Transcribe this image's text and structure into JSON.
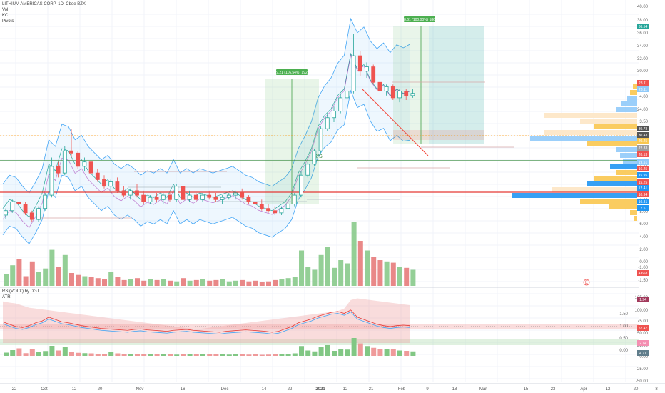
{
  "legend": {
    "title": "LITHIUM AMERICAS CORP, 1D, Cboe BZX",
    "indicators": [
      "Vol",
      "KC",
      "Pivots"
    ]
  },
  "sub_legend": {
    "line1": "RSI(VOLX) by DGT",
    "line2": "ATR"
  },
  "annotations": {
    "measure1": "19.21 (116.54%) 1921",
    "measure2": "18.61 (100.00%) 1861",
    "rs_label": "R/S",
    "circle_marker": "E"
  },
  "price_scale": [
    "40.00",
    "38.00",
    "36.00",
    "34.00",
    "32.00",
    "30.00",
    "4.50",
    "4.00",
    "24.00",
    "3.50",
    "3.00",
    "2.50",
    "2.00",
    "1.50",
    "1.00",
    "8.00",
    "6.00",
    "4.00",
    "2.00",
    "0.00",
    "-1.00",
    "-1.50"
  ],
  "osc_scale": [
    "125.00",
    "100.00",
    "75.00",
    "50.00",
    "25.00",
    "0.00",
    "-25.00",
    "-50.00"
  ],
  "osc_scale_small": [
    "1.50",
    "1.00",
    "0.50",
    "0.00"
  ],
  "price_tags": [
    {
      "label": "36.54",
      "color": "#26a69a"
    },
    {
      "label": "28.11",
      "color": "#ef5350"
    },
    {
      "label": "28.11",
      "color": "#90caf9"
    },
    {
      "label": "30.78",
      "color": "#555555"
    },
    {
      "label": "30.43",
      "color": "#555555"
    },
    {
      "label": "20.25",
      "color": "#f9c74f"
    },
    {
      "label": "22.33",
      "color": "#9e9e9e"
    },
    {
      "label": "20.13",
      "color": "#ef5350"
    },
    {
      "label": "19.51",
      "color": "#90caf9"
    },
    {
      "label": "16.25",
      "color": "#ef5350"
    },
    {
      "label": "15.95",
      "color": "#2196f3"
    },
    {
      "label": "15.25",
      "color": "#ef5350"
    },
    {
      "label": "12.41",
      "color": "#2196f3"
    },
    {
      "label": "10.94",
      "color": "#ef5350"
    },
    {
      "label": "10.81",
      "color": "#2196f3"
    },
    {
      "label": "2.5",
      "color": "#2196f3"
    },
    {
      "label": "4.668",
      "color": "#ef5350"
    },
    {
      "label": "1.94",
      "color": "#a23a5c"
    },
    {
      "label": "52.47",
      "color": "#ef5350"
    },
    {
      "label": "2.14",
      "color": "#f48fb1"
    },
    {
      "label": "4.71",
      "color": "#607d8b"
    }
  ],
  "x_axis": [
    "22",
    "Oct",
    "12",
    "20",
    "Nov",
    "16",
    "Dec",
    "14",
    "22",
    "2021",
    "12",
    "21",
    "Feb",
    "9",
    "18",
    "Mar",
    "15",
    "23",
    "Apr",
    "12",
    "20",
    "8"
  ],
  "chart_data": {
    "type": "candlestick",
    "title": "LITHIUM AMERICAS CORP, 1D, Cboe BZX",
    "price_range": [
      -1.5,
      4.8
    ],
    "candles": [
      [
        0.1,
        0.25,
        0.02,
        0.2
      ],
      [
        0.2,
        0.45,
        0.15,
        0.4
      ],
      [
        0.4,
        0.5,
        0.3,
        0.35
      ],
      [
        0.35,
        0.4,
        0.1,
        0.15
      ],
      [
        0.15,
        0.2,
        -0.05,
        0.0
      ],
      [
        0.0,
        0.3,
        -0.05,
        0.25
      ],
      [
        0.25,
        0.6,
        0.2,
        0.55
      ],
      [
        0.55,
        1.4,
        0.5,
        1.2
      ],
      [
        1.2,
        1.3,
        0.95,
        1.05
      ],
      [
        1.05,
        1.65,
        1.0,
        1.55
      ],
      [
        1.55,
        2.05,
        1.4,
        1.5
      ],
      [
        1.5,
        1.55,
        1.15,
        1.2
      ],
      [
        1.2,
        1.4,
        1.1,
        1.3
      ],
      [
        1.3,
        1.35,
        1.0,
        1.05
      ],
      [
        1.05,
        1.15,
        0.85,
        0.9
      ],
      [
        0.9,
        1.0,
        0.7,
        0.75
      ],
      [
        0.75,
        0.9,
        0.6,
        0.85
      ],
      [
        0.85,
        0.95,
        0.6,
        0.65
      ],
      [
        0.65,
        0.75,
        0.5,
        0.55
      ],
      [
        0.55,
        0.7,
        0.45,
        0.65
      ],
      [
        0.65,
        0.8,
        0.5,
        0.55
      ],
      [
        0.55,
        0.65,
        0.35,
        0.4
      ],
      [
        0.4,
        0.55,
        0.35,
        0.5
      ],
      [
        0.5,
        0.6,
        0.4,
        0.45
      ],
      [
        0.45,
        0.6,
        0.35,
        0.55
      ],
      [
        0.55,
        0.6,
        0.4,
        0.45
      ],
      [
        0.45,
        0.8,
        0.4,
        0.75
      ],
      [
        0.75,
        0.8,
        0.4,
        0.45
      ],
      [
        0.45,
        0.65,
        0.4,
        0.55
      ],
      [
        0.55,
        0.6,
        0.4,
        0.45
      ],
      [
        0.45,
        0.6,
        0.4,
        0.55
      ],
      [
        0.55,
        0.65,
        0.45,
        0.5
      ],
      [
        0.5,
        0.6,
        0.4,
        0.45
      ],
      [
        0.45,
        0.55,
        0.35,
        0.5
      ],
      [
        0.5,
        0.6,
        0.45,
        0.55
      ],
      [
        0.55,
        0.65,
        0.45,
        0.6
      ],
      [
        0.6,
        0.7,
        0.45,
        0.5
      ],
      [
        0.5,
        0.55,
        0.35,
        0.4
      ],
      [
        0.4,
        0.5,
        0.3,
        0.35
      ],
      [
        0.35,
        0.45,
        0.2,
        0.25
      ],
      [
        0.25,
        0.35,
        0.15,
        0.2
      ],
      [
        0.2,
        0.3,
        0.1,
        0.15
      ],
      [
        0.15,
        0.3,
        0.1,
        0.25
      ],
      [
        0.25,
        0.4,
        0.2,
        0.35
      ],
      [
        0.35,
        0.6,
        0.3,
        0.55
      ],
      [
        0.55,
        1.1,
        0.5,
        1.0
      ],
      [
        1.0,
        1.3,
        0.95,
        1.25
      ],
      [
        1.25,
        1.6,
        1.2,
        1.55
      ],
      [
        1.55,
        2.1,
        1.5,
        2.05
      ],
      [
        2.05,
        2.4,
        2.0,
        2.3
      ],
      [
        2.3,
        2.55,
        2.2,
        2.45
      ],
      [
        2.45,
        2.85,
        2.4,
        2.75
      ],
      [
        2.75,
        3.0,
        2.6,
        2.9
      ],
      [
        2.9,
        4.2,
        2.85,
        3.7
      ],
      [
        3.7,
        3.8,
        3.25,
        3.35
      ],
      [
        3.35,
        3.55,
        3.2,
        3.45
      ],
      [
        3.45,
        3.5,
        3.05,
        3.1
      ],
      [
        3.1,
        3.2,
        2.85,
        2.9
      ],
      [
        2.9,
        3.05,
        2.8,
        3.0
      ],
      [
        3.0,
        3.05,
        2.7,
        2.75
      ],
      [
        2.75,
        2.95,
        2.65,
        2.9
      ],
      [
        2.9,
        2.95,
        2.7,
        2.8
      ],
      [
        2.8,
        2.95,
        2.75,
        2.85
      ]
    ],
    "volume": [
      18,
      32,
      42,
      15,
      38,
      22,
      27,
      56,
      30,
      48,
      20,
      17,
      15,
      14,
      12,
      10,
      22,
      14,
      9,
      10,
      12,
      8,
      10,
      9,
      11,
      8,
      7,
      12,
      8,
      9,
      10,
      8,
      9,
      10,
      7,
      8,
      9,
      7,
      8,
      6,
      7,
      9,
      10,
      12,
      14,
      55,
      30,
      25,
      48,
      60,
      28,
      40,
      35,
      100,
      70,
      55,
      45,
      40,
      38,
      36,
      30,
      28,
      25
    ],
    "rsi": [
      60,
      55,
      50,
      48,
      52,
      58,
      62,
      70,
      65,
      60,
      58,
      55,
      52,
      50,
      48,
      46,
      45,
      44,
      43,
      42,
      44,
      45,
      43,
      42,
      41,
      40,
      42,
      43,
      44,
      42,
      41,
      40,
      39,
      38,
      40,
      41,
      42,
      43,
      42,
      41,
      40,
      38,
      40,
      45,
      50,
      58,
      62,
      66,
      72,
      76,
      80,
      82,
      78,
      85,
      70,
      65,
      60,
      55,
      52,
      50,
      52,
      53,
      52
    ],
    "vol_band": [
      115,
      112,
      110,
      105,
      100,
      98,
      96,
      94,
      92,
      90,
      88,
      86,
      84,
      82,
      80,
      78,
      76,
      74,
      72,
      70,
      68,
      66,
      64,
      62,
      60,
      58,
      56,
      54,
      52,
      50,
      50,
      52,
      54,
      56,
      58,
      60,
      62,
      64,
      66,
      68,
      70,
      72,
      74,
      76,
      78,
      80,
      82,
      84,
      86,
      88,
      90,
      92,
      98,
      118,
      122,
      120,
      118,
      116,
      114,
      112,
      110,
      108,
      106
    ]
  }
}
